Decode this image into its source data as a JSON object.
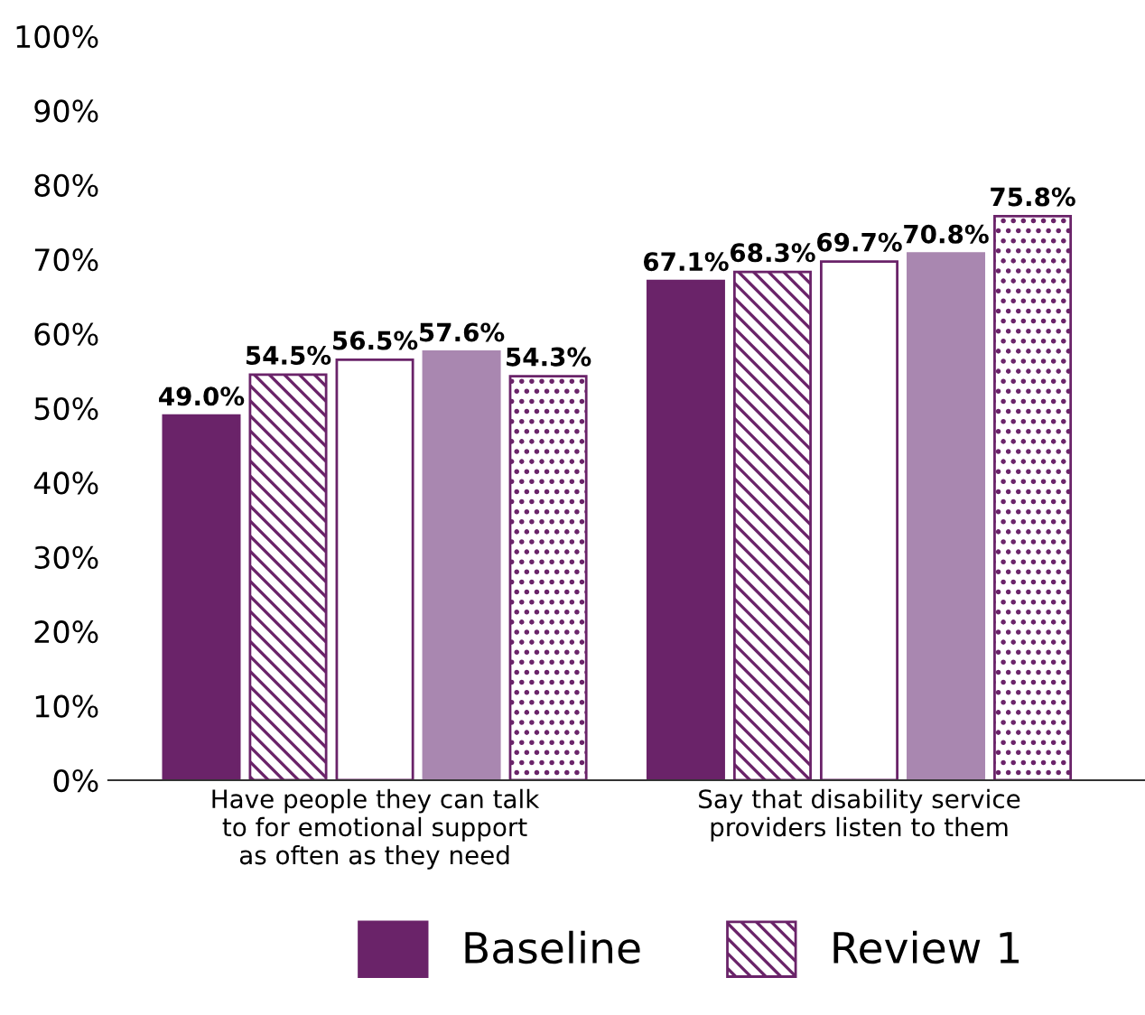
{
  "chart_data": {
    "type": "bar",
    "categories": [
      "Have people they can talk\nto for emotional support\nas often as they need",
      "Say that disability service\nproviders listen to them"
    ],
    "series": [
      {
        "name": "Baseline",
        "color": "#6a2369",
        "values": [
          49.0,
          67.1
        ],
        "value_labels": [
          "49.0%",
          "67.1%"
        ]
      },
      {
        "name": "Review 1",
        "color": "#6a2369",
        "values": [
          54.5,
          68.3
        ],
        "value_labels": [
          "54.5%",
          "68.3%"
        ]
      },
      {
        "color": "#6a2369",
        "values": [
          56.5,
          69.7
        ],
        "value_labels": [
          "56.5%",
          "69.7%"
        ]
      },
      {
        "color": "#a987b0",
        "values": [
          57.6,
          70.8
        ],
        "value_labels": [
          "57.6%",
          "70.8%"
        ]
      },
      {
        "color": "#6a2369",
        "values": [
          54.3,
          75.8
        ],
        "value_labels": [
          "54.3%",
          "75.8%"
        ]
      }
    ],
    "ylim": [
      0,
      100
    ],
    "yticks": [
      {
        "value": 0,
        "label": "0%"
      },
      {
        "value": 10,
        "label": "10%"
      },
      {
        "value": 20,
        "label": "20%"
      },
      {
        "value": 30,
        "label": "30%"
      },
      {
        "value": 40,
        "label": "40%"
      },
      {
        "value": 50,
        "label": "50%"
      },
      {
        "value": 60,
        "label": "60%"
      },
      {
        "value": 70,
        "label": "70%"
      },
      {
        "value": 80,
        "label": "80%"
      },
      {
        "value": 90,
        "label": "90%"
      },
      {
        "value": 100,
        "label": "100%"
      }
    ],
    "grid": false,
    "legend": "bottom"
  }
}
